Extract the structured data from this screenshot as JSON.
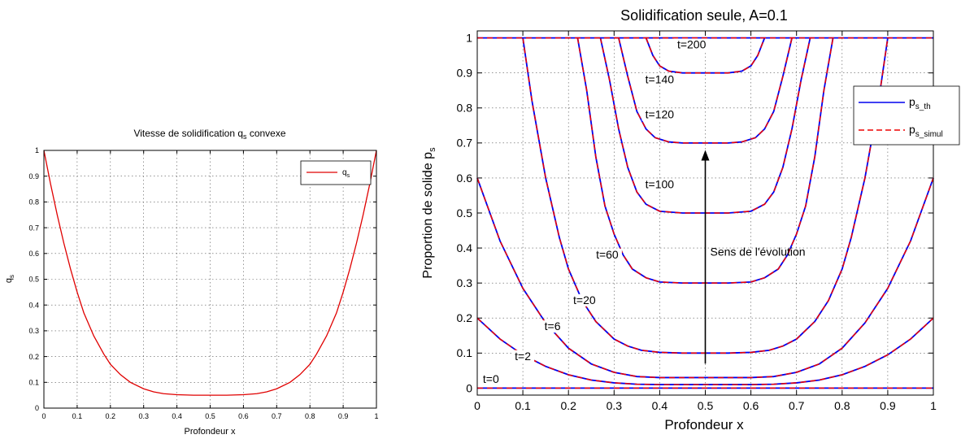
{
  "chart_data": [
    {
      "type": "line",
      "title": "Vitesse de solidification q",
      "title_sub": "s",
      "title_suffix": " convexe",
      "xlabel": "Profondeur x",
      "ylabel": "q",
      "ylabel_sub": "s",
      "xlim": [
        0,
        1
      ],
      "ylim": [
        0,
        1
      ],
      "xticks": [
        0,
        0.1,
        0.2,
        0.3,
        0.4,
        0.5,
        0.6,
        0.7,
        0.8,
        0.9,
        1
      ],
      "yticks": [
        0,
        0.1,
        0.2,
        0.3,
        0.4,
        0.5,
        0.6,
        0.7,
        0.8,
        0.9,
        1
      ],
      "xtick_labels": [
        "0",
        "0.1",
        "0.2",
        "0.3",
        "0.4",
        "0.5",
        "0.6",
        "0.7",
        "0.8",
        "0.9",
        "1"
      ],
      "ytick_labels": [
        "0",
        "0.1",
        "0.2",
        "0.3",
        "0.4",
        "0.5",
        "0.6",
        "0.7",
        "0.8",
        "0.9",
        "1"
      ],
      "grid": true,
      "legend_position": "top-right",
      "series": [
        {
          "name": "q",
          "name_sub": "s",
          "color": "#e00000",
          "x": [
            0,
            0.02,
            0.04,
            0.06,
            0.08,
            0.1,
            0.12,
            0.15,
            0.18,
            0.2,
            0.23,
            0.26,
            0.3,
            0.33,
            0.36,
            0.4,
            0.45,
            0.5,
            0.55,
            0.6,
            0.64,
            0.67,
            0.7,
            0.74,
            0.77,
            0.8,
            0.82,
            0.85,
            0.88,
            0.9,
            0.92,
            0.94,
            0.96,
            0.98,
            1
          ],
          "y": [
            1.0,
            0.87,
            0.75,
            0.64,
            0.54,
            0.45,
            0.37,
            0.28,
            0.21,
            0.17,
            0.13,
            0.1,
            0.075,
            0.063,
            0.056,
            0.052,
            0.05,
            0.05,
            0.05,
            0.052,
            0.056,
            0.063,
            0.075,
            0.1,
            0.13,
            0.17,
            0.21,
            0.28,
            0.37,
            0.45,
            0.54,
            0.64,
            0.75,
            0.87,
            1.0
          ]
        }
      ]
    },
    {
      "type": "line",
      "title": "Solidification seule, A=0.1",
      "xlabel": "Profondeur x",
      "ylabel": "Proportion de solide p",
      "ylabel_sub": "s",
      "xlim": [
        0,
        1
      ],
      "ylim": [
        -0.02,
        1.02
      ],
      "xticks": [
        0,
        0.1,
        0.2,
        0.3,
        0.4,
        0.5,
        0.6,
        0.7,
        0.8,
        0.9,
        1
      ],
      "yticks": [
        0,
        0.1,
        0.2,
        0.3,
        0.4,
        0.5,
        0.6,
        0.7,
        0.8,
        0.9,
        1
      ],
      "xtick_labels": [
        "0",
        "0.1",
        "0.2",
        "0.3",
        "0.4",
        "0.5",
        "0.6",
        "0.7",
        "0.8",
        "0.9",
        "1"
      ],
      "ytick_labels": [
        "0",
        "0.1",
        "0.2",
        "0.3",
        "0.4",
        "0.5",
        "0.6",
        "0.7",
        "0.8",
        "0.9",
        "1"
      ],
      "grid": true,
      "legend_position": "top-right",
      "legend": [
        {
          "name": "p",
          "name_sub": "s_th",
          "color": "#0000ee",
          "style": "solid"
        },
        {
          "name": "p",
          "name_sub": "s_simul",
          "color": "#ee0000",
          "style": "dashed"
        }
      ],
      "series": [
        {
          "label": "t=0",
          "x": [
            0,
            1
          ],
          "y": [
            0,
            0
          ]
        },
        {
          "label": "t=2",
          "x": [
            0,
            0.05,
            0.1,
            0.15,
            0.2,
            0.25,
            0.3,
            0.35,
            0.4,
            0.5,
            0.6,
            0.65,
            0.7,
            0.75,
            0.8,
            0.85,
            0.9,
            0.95,
            1
          ],
          "y": [
            0.2,
            0.14,
            0.095,
            0.062,
            0.038,
            0.023,
            0.015,
            0.011,
            0.01,
            0.01,
            0.01,
            0.011,
            0.015,
            0.023,
            0.038,
            0.062,
            0.095,
            0.14,
            0.2
          ]
        },
        {
          "label": "t=6",
          "x": [
            0,
            0.05,
            0.1,
            0.15,
            0.2,
            0.25,
            0.3,
            0.35,
            0.4,
            0.5,
            0.6,
            0.65,
            0.7,
            0.75,
            0.8,
            0.85,
            0.9,
            0.95,
            1
          ],
          "y": [
            0.6,
            0.42,
            0.285,
            0.186,
            0.114,
            0.069,
            0.045,
            0.033,
            0.03,
            0.03,
            0.03,
            0.033,
            0.045,
            0.069,
            0.114,
            0.186,
            0.285,
            0.42,
            0.6
          ]
        },
        {
          "label": "t=20",
          "x": [
            0.1,
            0.12,
            0.15,
            0.18,
            0.2,
            0.23,
            0.26,
            0.3,
            0.33,
            0.36,
            0.4,
            0.45,
            0.5,
            0.55,
            0.6,
            0.64,
            0.67,
            0.7,
            0.74,
            0.77,
            0.8,
            0.82,
            0.85,
            0.88,
            0.9
          ],
          "y": [
            1,
            0.82,
            0.6,
            0.43,
            0.34,
            0.25,
            0.19,
            0.14,
            0.12,
            0.108,
            0.102,
            0.1,
            0.1,
            0.1,
            0.102,
            0.108,
            0.12,
            0.14,
            0.19,
            0.25,
            0.34,
            0.43,
            0.6,
            0.82,
            1
          ]
        },
        {
          "label": "t=60",
          "x": [
            0.22,
            0.24,
            0.26,
            0.28,
            0.3,
            0.32,
            0.34,
            0.37,
            0.4,
            0.45,
            0.5,
            0.55,
            0.6,
            0.63,
            0.66,
            0.68,
            0.7,
            0.72,
            0.74,
            0.76,
            0.78
          ],
          "y": [
            1,
            0.85,
            0.66,
            0.52,
            0.44,
            0.38,
            0.34,
            0.315,
            0.303,
            0.3,
            0.3,
            0.3,
            0.303,
            0.315,
            0.34,
            0.38,
            0.44,
            0.52,
            0.66,
            0.85,
            1
          ]
        },
        {
          "label": "t=100",
          "x": [
            0.27,
            0.29,
            0.31,
            0.33,
            0.35,
            0.37,
            0.4,
            0.45,
            0.5,
            0.55,
            0.6,
            0.63,
            0.65,
            0.67,
            0.69,
            0.71,
            0.73
          ],
          "y": [
            1,
            0.88,
            0.74,
            0.63,
            0.56,
            0.525,
            0.505,
            0.5,
            0.5,
            0.5,
            0.505,
            0.525,
            0.56,
            0.63,
            0.74,
            0.88,
            1
          ]
        },
        {
          "label": "t=120",
          "x": [
            0.31,
            0.33,
            0.35,
            0.37,
            0.39,
            0.42,
            0.45,
            0.5,
            0.55,
            0.58,
            0.61,
            0.63,
            0.65,
            0.67,
            0.69
          ],
          "y": [
            1,
            0.89,
            0.79,
            0.74,
            0.715,
            0.703,
            0.7,
            0.7,
            0.7,
            0.703,
            0.715,
            0.74,
            0.79,
            0.89,
            1
          ]
        },
        {
          "label": "t=140",
          "x": [
            0.37,
            0.385,
            0.4,
            0.42,
            0.45,
            0.5,
            0.55,
            0.58,
            0.6,
            0.615,
            0.63
          ],
          "y": [
            1,
            0.95,
            0.92,
            0.905,
            0.9,
            0.9,
            0.9,
            0.905,
            0.92,
            0.95,
            1
          ]
        },
        {
          "label": "t=200",
          "x": [
            0,
            1
          ],
          "y": [
            1,
            1
          ]
        }
      ],
      "curve_labels": [
        {
          "text": "t=0",
          "x": 0.03,
          "y": 0.02
        },
        {
          "text": "t=2",
          "x": 0.1,
          "y": 0.085
        },
        {
          "text": "t=6",
          "x": 0.165,
          "y": 0.17
        },
        {
          "text": "t=20",
          "x": 0.235,
          "y": 0.245
        },
        {
          "text": "t=60",
          "x": 0.285,
          "y": 0.375
        },
        {
          "text": "t=100",
          "x": 0.4,
          "y": 0.575
        },
        {
          "text": "t=120",
          "x": 0.4,
          "y": 0.775
        },
        {
          "text": "t=140",
          "x": 0.4,
          "y": 0.875
        },
        {
          "text": "t=200",
          "x": 0.47,
          "y": 0.975
        }
      ],
      "annotation": {
        "text": "Sens de l'évolution",
        "arrow_x": 0.5,
        "arrow_from_y": 0.07,
        "arrow_to_y": 0.68,
        "text_x": 0.52,
        "text_y": 0.39
      }
    }
  ]
}
